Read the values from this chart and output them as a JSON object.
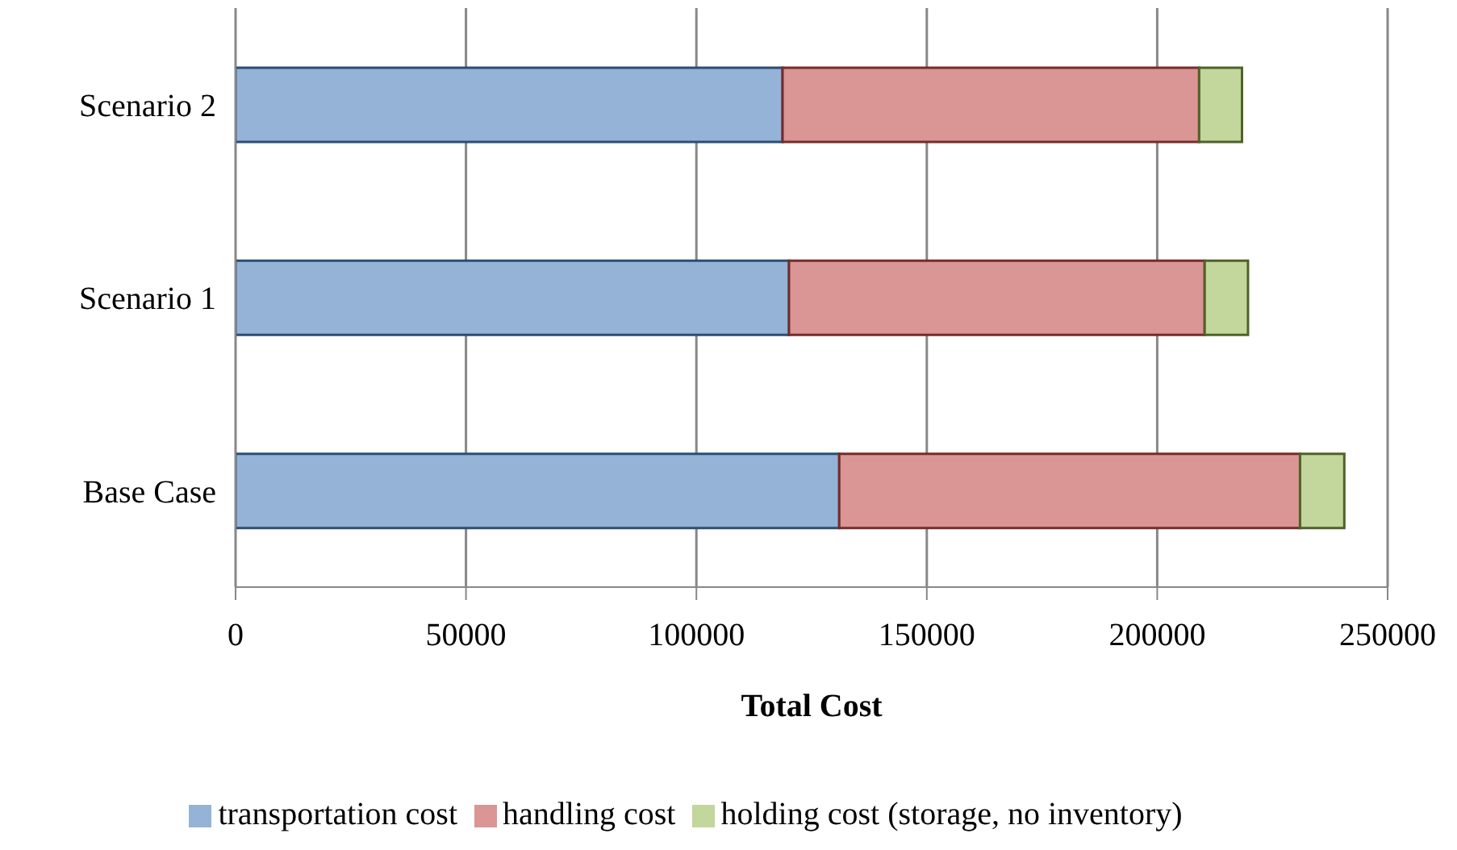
{
  "chart_data": {
    "type": "bar",
    "orientation": "horizontal",
    "stacked": true,
    "xlabel": "Total Cost",
    "categories": [
      "Scenario 2",
      "Scenario 1",
      "Base Case"
    ],
    "series": [
      {
        "name": "transportation cost",
        "color": "#95b3d7",
        "values": [
          118700,
          120100,
          131000
        ]
      },
      {
        "name": "handling cost",
        "color": "#d99694",
        "values": [
          90400,
          90200,
          100000
        ]
      },
      {
        "name": "holding cost (storage, no inventory)",
        "color": "#c3d69b",
        "values": [
          9300,
          9400,
          9600
        ]
      }
    ],
    "xlim": [
      0,
      250000
    ],
    "xticks": [
      0,
      50000,
      100000,
      150000,
      200000,
      250000
    ],
    "grid": "x",
    "legend": "bottom"
  }
}
